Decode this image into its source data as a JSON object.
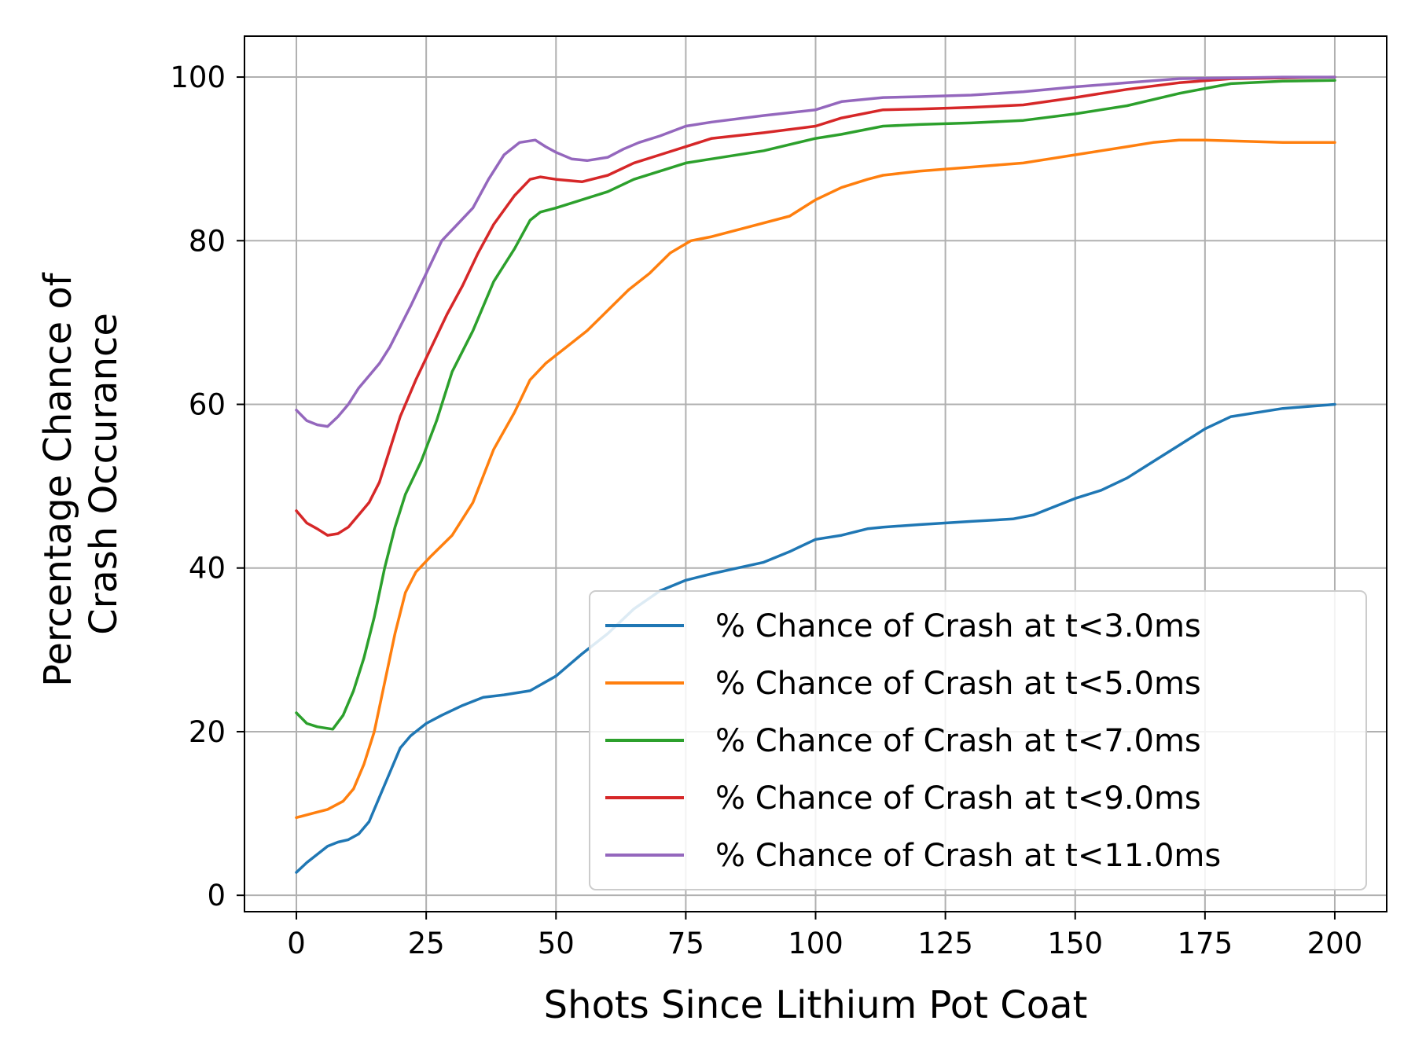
{
  "chart_data": {
    "type": "line",
    "title": "",
    "xlabel": "Shots Since Lithium Pot Coat",
    "ylabel_lines": [
      "Percentage Chance of",
      "Crash Occurance"
    ],
    "xlim": [
      -10,
      210
    ],
    "ylim": [
      -2,
      105
    ],
    "xticks": [
      0,
      25,
      50,
      75,
      100,
      125,
      150,
      175,
      200
    ],
    "yticks": [
      0,
      20,
      40,
      60,
      80,
      100
    ],
    "grid": true,
    "legend_position": "lower-right",
    "series": [
      {
        "name": "% Chance of Crash at t<3.0ms",
        "color": "#1f77b4",
        "x": [
          0,
          2,
          4,
          6,
          8,
          10,
          12,
          14,
          16,
          18,
          20,
          22,
          25,
          28,
          32,
          36,
          40,
          45,
          50,
          55,
          60,
          65,
          70,
          75,
          80,
          85,
          90,
          95,
          100,
          105,
          110,
          113,
          120,
          130,
          138,
          142,
          150,
          155,
          160,
          165,
          170,
          175,
          180,
          190,
          200
        ],
        "values": [
          2.8,
          4,
          5,
          6,
          6.5,
          6.8,
          7.5,
          9,
          12,
          15,
          18,
          19.5,
          21,
          22,
          23.2,
          24.2,
          24.5,
          25,
          26.8,
          29.5,
          32,
          35,
          37.2,
          38.5,
          39.3,
          40,
          40.7,
          42,
          43.5,
          44,
          44.8,
          45,
          45.3,
          45.7,
          46,
          46.5,
          48.5,
          49.5,
          51,
          53,
          55,
          57,
          58.5,
          59.5,
          60
        ]
      },
      {
        "name": "% Chance of Crash at t<5.0ms",
        "color": "#ff7f0e",
        "x": [
          0,
          3,
          6,
          9,
          11,
          13,
          15,
          17,
          19,
          21,
          23,
          26,
          30,
          34,
          38,
          42,
          45,
          48,
          52,
          56,
          60,
          64,
          68,
          72,
          76,
          80,
          86,
          95,
          100,
          105,
          110,
          113,
          120,
          130,
          140,
          145,
          150,
          155,
          160,
          165,
          170,
          175,
          180,
          190,
          200
        ],
        "values": [
          9.5,
          10,
          10.5,
          11.5,
          13,
          16,
          20,
          26,
          32,
          37,
          39.5,
          41.5,
          44,
          48,
          54.5,
          59,
          63,
          65,
          67,
          69,
          71.5,
          74,
          76,
          78.5,
          80,
          80.5,
          81.5,
          83,
          85,
          86.5,
          87.5,
          88,
          88.5,
          89,
          89.5,
          90,
          90.5,
          91,
          91.5,
          92,
          92.3,
          92.3,
          92.2,
          92,
          92
        ]
      },
      {
        "name": "% Chance of Crash at t<7.0ms",
        "color": "#2ca02c",
        "x": [
          0,
          2,
          4,
          6,
          7,
          9,
          11,
          13,
          15,
          17,
          19,
          21,
          24,
          27,
          30,
          34,
          38,
          42,
          45,
          47,
          50,
          55,
          60,
          65,
          70,
          75,
          80,
          90,
          100,
          105,
          113,
          120,
          130,
          140,
          150,
          160,
          170,
          180,
          190,
          200
        ],
        "values": [
          22.3,
          21,
          20.6,
          20.4,
          20.3,
          22,
          25,
          29,
          34,
          40,
          45,
          49,
          53,
          58,
          64,
          69,
          75,
          79,
          82.5,
          83.5,
          84,
          85,
          86,
          87.5,
          88.5,
          89.5,
          90,
          91,
          92.5,
          93,
          94,
          94.2,
          94.4,
          94.7,
          95.5,
          96.5,
          98,
          99.2,
          99.5,
          99.6
        ]
      },
      {
        "name": "% Chance of Crash at t<9.0ms",
        "color": "#d62728",
        "x": [
          0,
          2,
          4,
          6,
          8,
          10,
          12,
          14,
          16,
          18,
          20,
          23,
          26,
          29,
          32,
          35,
          38,
          42,
          45,
          47,
          50,
          55,
          60,
          65,
          70,
          75,
          80,
          90,
          100,
          105,
          113,
          120,
          130,
          140,
          150,
          160,
          170,
          180,
          190,
          200
        ],
        "values": [
          47,
          45.5,
          44.8,
          44,
          44.2,
          45,
          46.5,
          48,
          50.5,
          54.5,
          58.5,
          63,
          67,
          71,
          74.5,
          78.5,
          82,
          85.5,
          87.5,
          87.8,
          87.5,
          87.2,
          88,
          89.5,
          90.5,
          91.5,
          92.5,
          93.2,
          94,
          95,
          96,
          96.1,
          96.3,
          96.6,
          97.5,
          98.5,
          99.3,
          99.8,
          99.9,
          100
        ]
      },
      {
        "name": "% Chance of Crash at t<11.0ms",
        "color": "#9467bd",
        "x": [
          0,
          2,
          4,
          6,
          8,
          10,
          12,
          14,
          16,
          18,
          20,
          22,
          25,
          28,
          31,
          34,
          37,
          40,
          43,
          46,
          48,
          50,
          53,
          56,
          60,
          63,
          66,
          70,
          75,
          80,
          90,
          100,
          105,
          113,
          120,
          130,
          140,
          150,
          160,
          170,
          180,
          190,
          200
        ],
        "values": [
          59.3,
          58,
          57.5,
          57.3,
          58.5,
          60,
          62,
          63.5,
          65,
          67,
          69.5,
          72,
          76,
          80,
          82,
          84,
          87.5,
          90.5,
          92,
          92.3,
          91.5,
          90.8,
          90,
          89.8,
          90.2,
          91.2,
          92,
          92.8,
          94,
          94.5,
          95.3,
          96,
          97,
          97.5,
          97.6,
          97.8,
          98.2,
          98.8,
          99.3,
          99.8,
          99.9,
          100,
          100
        ]
      }
    ]
  }
}
